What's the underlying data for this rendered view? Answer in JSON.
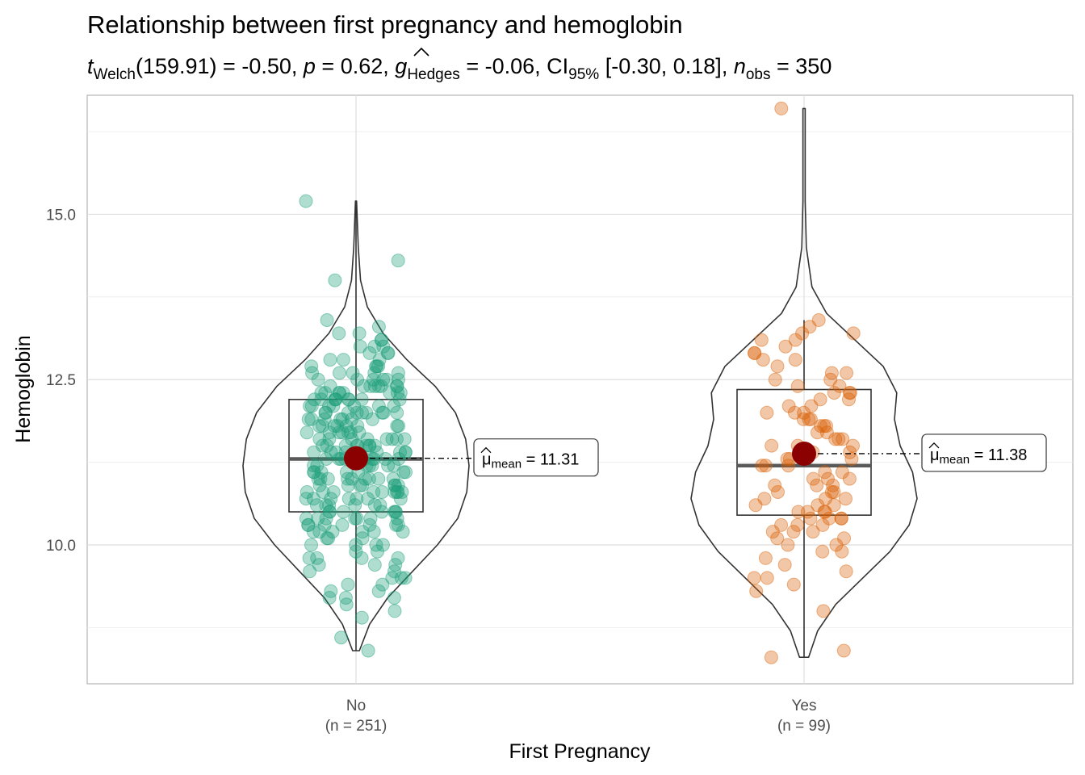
{
  "title": "Relationship between first pregnancy and hemoglobin",
  "subtitle": {
    "t_sym": "t",
    "t_sub": "Welch",
    "df": "(159.91)",
    "t_val": "-0.50",
    "p_sym": "p",
    "p_val": "0.62",
    "g_sym": "g",
    "g_sub": "Hedges",
    "g_val": "-0.06",
    "ci_sym": "CI",
    "ci_sub": "95%",
    "ci_val": "[-0.30, 0.18]",
    "n_sym": "n",
    "n_sub": "obs",
    "n_val": "350",
    "eq": " = ",
    "sep": ", "
  },
  "chart_data": {
    "type": "violin-box-jitter",
    "xlabel": "First Pregnancy",
    "ylabel": "Hemoglobin",
    "ylim": [
      7.9,
      16.8
    ],
    "yticks": [
      10.0,
      12.5,
      15.0
    ],
    "ytick_labels": [
      "10.0",
      "12.5",
      "15.0"
    ],
    "grid": true,
    "mean_color": "#8B0000",
    "groups": [
      {
        "name": "No",
        "n_label": "(n = 251)",
        "color": "#1B9E77",
        "median": 11.3,
        "q1": 10.5,
        "q3": 12.2,
        "whisker_low": 8.4,
        "whisker_high": 15.2,
        "mean": 11.31,
        "mean_label_mu": "μ",
        "mean_label_sub": "mean",
        "mean_label_val": " = 11.31",
        "violin_profile": [
          [
            8.4,
            0.03
          ],
          [
            8.8,
            0.12
          ],
          [
            9.2,
            0.28
          ],
          [
            9.6,
            0.5
          ],
          [
            10.0,
            0.72
          ],
          [
            10.4,
            0.9
          ],
          [
            10.8,
            0.98
          ],
          [
            11.2,
            1.0
          ],
          [
            11.6,
            0.97
          ],
          [
            12.0,
            0.88
          ],
          [
            12.4,
            0.7
          ],
          [
            12.8,
            0.45
          ],
          [
            13.2,
            0.24
          ],
          [
            13.6,
            0.1
          ],
          [
            14.0,
            0.04
          ],
          [
            14.5,
            0.02
          ],
          [
            15.2,
            0.005
          ]
        ],
        "points": [
          15.2,
          14.3,
          14.0,
          13.4,
          13.3,
          13.2,
          13.2,
          13.1,
          13.1,
          13.0,
          13.0,
          12.9,
          12.9,
          12.8,
          12.8,
          12.7,
          12.7,
          12.7,
          12.6,
          12.6,
          12.6,
          12.5,
          12.5,
          12.5,
          12.5,
          12.4,
          12.4,
          12.4,
          12.4,
          12.4,
          12.3,
          12.3,
          12.3,
          12.3,
          12.3,
          12.2,
          12.2,
          12.2,
          12.2,
          12.2,
          12.1,
          12.1,
          12.1,
          12.1,
          12.0,
          12.0,
          12.0,
          12.0,
          12.0,
          11.9,
          11.9,
          11.9,
          11.9,
          11.8,
          11.8,
          11.8,
          11.8,
          11.8,
          11.7,
          11.7,
          11.7,
          11.7,
          11.6,
          11.6,
          11.6,
          11.6,
          11.6,
          11.5,
          11.5,
          11.5,
          11.5,
          11.5,
          11.4,
          11.4,
          11.4,
          11.4,
          11.3,
          11.3,
          11.3,
          11.3,
          11.3,
          11.2,
          11.2,
          11.2,
          11.2,
          11.1,
          11.1,
          11.1,
          11.1,
          11.0,
          11.0,
          11.0,
          11.0,
          11.0,
          10.9,
          10.9,
          10.9,
          10.9,
          10.8,
          10.8,
          10.8,
          10.8,
          10.8,
          10.7,
          10.7,
          10.7,
          10.7,
          10.6,
          10.6,
          10.6,
          10.6,
          10.5,
          10.5,
          10.5,
          10.5,
          10.5,
          10.4,
          10.4,
          10.4,
          10.4,
          10.3,
          10.3,
          10.3,
          10.3,
          10.3,
          10.2,
          10.2,
          10.2,
          10.2,
          10.1,
          10.1,
          10.1,
          10.0,
          10.0,
          10.0,
          9.9,
          9.9,
          9.8,
          9.8,
          9.8,
          9.7,
          9.7,
          9.7,
          9.6,
          9.6,
          9.5,
          9.5,
          9.5,
          9.4,
          9.4,
          9.3,
          9.3,
          9.2,
          9.2,
          9.2,
          9.1,
          9.0,
          8.9,
          8.6,
          8.4,
          12.8,
          12.6,
          12.4,
          12.2,
          12.0,
          11.8,
          11.6,
          11.4,
          11.2,
          11.0,
          10.8,
          10.6,
          10.4,
          10.2,
          10.0,
          9.8,
          12.5,
          12.3,
          12.1,
          11.9,
          11.7,
          11.5,
          11.3,
          11.1,
          10.9,
          10.7,
          10.5,
          10.3,
          12.4,
          11.9,
          11.4,
          10.9,
          10.4,
          12.7,
          12.2,
          11.7,
          11.2,
          10.7,
          10.2,
          13.0,
          12.9,
          12.3,
          11.8,
          11.3,
          10.8,
          10.3,
          12.0,
          11.5,
          11.0,
          10.5,
          12.1,
          11.6,
          11.1,
          10.6,
          12.2,
          11.7,
          11.2,
          10.7,
          12.3,
          11.8,
          11.3,
          10.8,
          12.4,
          11.9,
          11.4,
          10.9,
          12.5,
          12.0,
          11.5,
          11.0,
          12.6,
          12.1,
          11.6,
          11.1,
          12.2,
          11.3,
          10.4,
          11.0,
          11.5,
          12.0,
          10.8,
          11.4
        ]
      },
      {
        "name": "Yes",
        "n_label": "(n = 99)",
        "color": "#D95F02",
        "median": 11.2,
        "q1": 10.45,
        "q3": 12.35,
        "whisker_low": 8.3,
        "whisker_high": 13.4,
        "mean": 11.38,
        "mean_label_mu": "μ",
        "mean_label_sub": "mean",
        "mean_label_val": " = 11.38",
        "violin_profile": [
          [
            8.3,
            0.04
          ],
          [
            8.7,
            0.12
          ],
          [
            9.1,
            0.28
          ],
          [
            9.5,
            0.52
          ],
          [
            9.9,
            0.76
          ],
          [
            10.3,
            0.93
          ],
          [
            10.7,
            1.0
          ],
          [
            11.1,
            0.96
          ],
          [
            11.5,
            0.85
          ],
          [
            11.9,
            0.8
          ],
          [
            12.3,
            0.82
          ],
          [
            12.7,
            0.7
          ],
          [
            13.1,
            0.45
          ],
          [
            13.5,
            0.2
          ],
          [
            13.9,
            0.07
          ],
          [
            14.5,
            0.02
          ],
          [
            15.2,
            0.01
          ],
          [
            15.8,
            0.01
          ],
          [
            16.6,
            0.01
          ]
        ],
        "points": [
          16.6,
          13.4,
          13.3,
          13.2,
          13.2,
          13.1,
          13.1,
          13.0,
          12.9,
          12.9,
          12.8,
          12.8,
          12.7,
          12.6,
          12.6,
          12.5,
          12.4,
          12.4,
          12.3,
          12.3,
          12.2,
          12.1,
          12.1,
          12.0,
          12.0,
          11.9,
          11.9,
          11.8,
          11.8,
          11.7,
          11.7,
          11.6,
          11.6,
          11.5,
          11.5,
          11.4,
          11.4,
          11.3,
          11.3,
          11.2,
          11.2,
          11.1,
          11.1,
          11.0,
          11.0,
          10.9,
          10.9,
          10.8,
          10.8,
          10.7,
          10.7,
          10.6,
          10.6,
          10.5,
          10.5,
          10.5,
          10.4,
          10.4,
          10.4,
          10.3,
          10.3,
          10.3,
          10.2,
          10.2,
          10.2,
          10.1,
          10.1,
          10.0,
          10.0,
          9.9,
          9.9,
          9.8,
          9.7,
          9.6,
          9.5,
          9.5,
          9.4,
          9.3,
          9.0,
          8.4,
          8.3,
          12.5,
          12.2,
          11.8,
          11.5,
          11.2,
          10.9,
          10.6,
          11.6,
          11.0,
          10.4,
          12.0,
          11.3,
          10.7,
          12.3,
          11.9,
          11.4,
          10.8,
          10.5
        ]
      }
    ]
  }
}
